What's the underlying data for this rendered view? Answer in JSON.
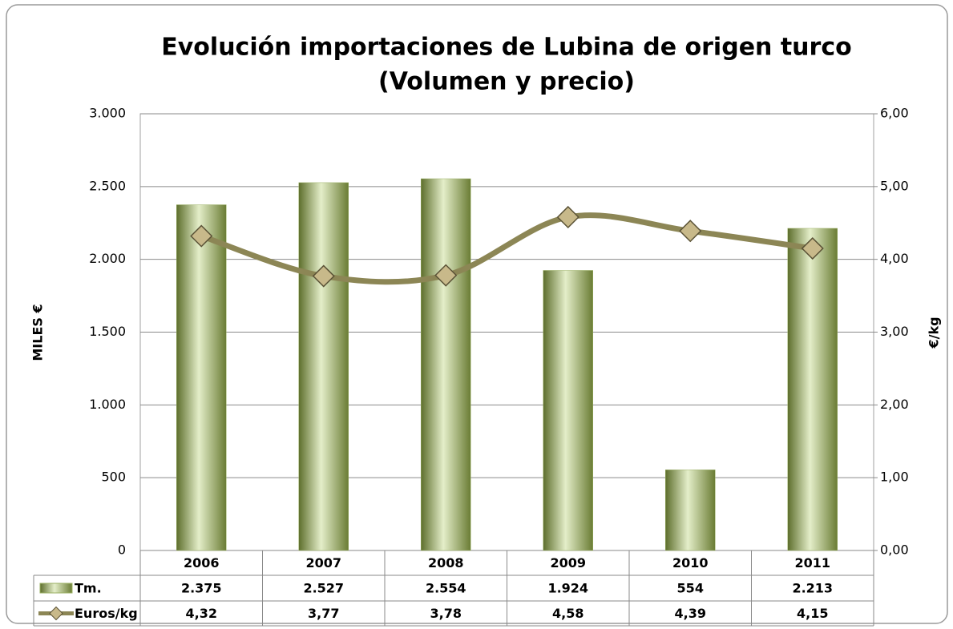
{
  "chart_data": {
    "type": "bar_line",
    "title": "Evolución importaciones de Lubina de origen turco",
    "subtitle": "(Volumen y precio)",
    "y_label": "MILES €",
    "y2_label": "€/kg",
    "categories": [
      "2006",
      "2007",
      "2008",
      "2009",
      "2010",
      "2011"
    ],
    "series": [
      {
        "name": "Tm.",
        "type": "bar",
        "color": "#9bb064",
        "values": [
          2375,
          2527,
          2554,
          1924,
          554,
          2213
        ],
        "value_labels": [
          "2.375",
          "2.527",
          "2.554",
          "1.924",
          "554",
          "2.213"
        ]
      },
      {
        "name": "Euros/kg",
        "type": "line",
        "axis": "y2",
        "color": "#8c8655",
        "values": [
          4.32,
          3.77,
          3.78,
          4.58,
          4.39,
          4.15
        ],
        "value_labels": [
          "4,32",
          "3,77",
          "3,78",
          "4,58",
          "4,39",
          "4,15"
        ]
      }
    ],
    "ylim": [
      0,
      3000
    ],
    "yticks": [
      0,
      500,
      {
        "value": 1000,
        "label": "1.000"
      },
      {
        "value": 1500,
        "label": "1.500"
      },
      {
        "value": 2000,
        "label": "2.000"
      },
      {
        "value": 2500,
        "label": "2.500"
      },
      {
        "value": 3000,
        "label": "3.000"
      }
    ],
    "y2lim": [
      0,
      6
    ],
    "y2ticks": [
      {
        "value": 0,
        "label": "0,00"
      },
      {
        "value": 1,
        "label": "1,00"
      },
      {
        "value": 2,
        "label": "2,00"
      },
      {
        "value": 3,
        "label": "3,00"
      },
      {
        "value": 4,
        "label": "4,00"
      },
      {
        "value": 5,
        "label": "5,00"
      },
      {
        "value": 6,
        "label": "6,00"
      }
    ],
    "grid": true
  }
}
